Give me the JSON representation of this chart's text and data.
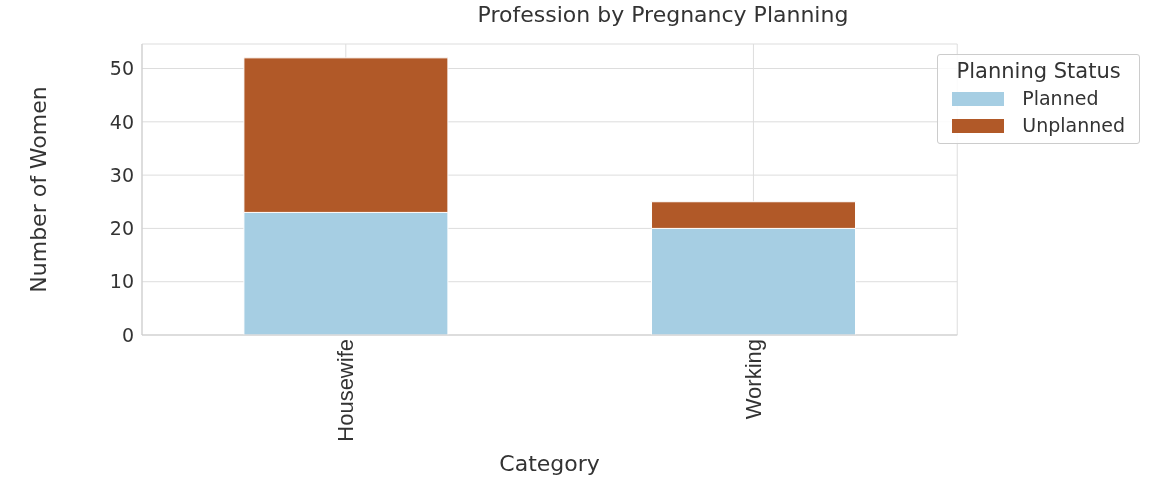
{
  "chart_data": {
    "type": "bar",
    "title": "Profession by Pregnancy Planning",
    "xlabel": "Category",
    "ylabel": "Number of Women",
    "legend_title": "Planning Status",
    "categories": [
      "Housewife",
      "Working"
    ],
    "series": [
      {
        "name": "Planned",
        "color": "#a6cee3",
        "values": [
          23,
          20
        ]
      },
      {
        "name": "Unplanned",
        "color": "#b15928",
        "values": [
          29,
          5
        ]
      }
    ],
    "stacked": true,
    "ylim": [
      0,
      54.6
    ],
    "yticks": [
      0,
      10,
      20,
      30,
      40,
      50
    ],
    "grid": true,
    "legend": "top right"
  }
}
